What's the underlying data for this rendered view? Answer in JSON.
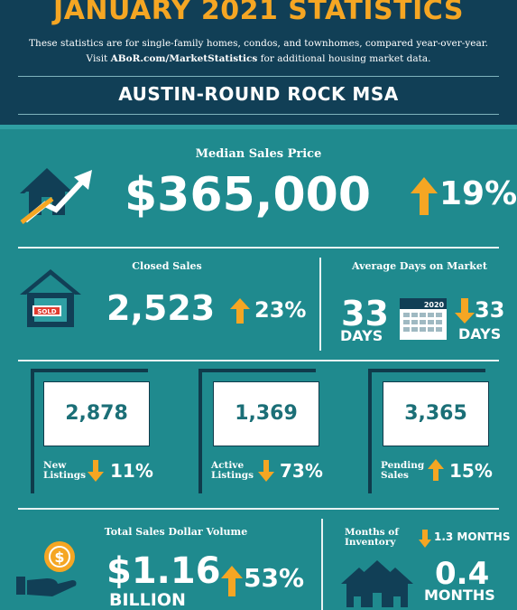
{
  "header": {
    "title": "JANUARY 2021 STATISTICS",
    "intro_line1": "These statistics are for single-family homes, condos, and townhomes, compared year-over-year.",
    "intro_visit": "Visit",
    "intro_link": "ABoR.com/MarketStatistics",
    "intro_tail": "for additional housing market data.",
    "region": "AUSTIN-ROUND ROCK MSA"
  },
  "median": {
    "label": "Median Sales Price",
    "value": "$365,000",
    "change": "19%",
    "direction": "up"
  },
  "closed": {
    "label": "Closed Sales",
    "value": "2,523",
    "change": "23%",
    "direction": "up",
    "sign_text": "SOLD"
  },
  "days": {
    "label": "Average Days on Market",
    "value": "33",
    "value_unit": "DAYS",
    "calendar_year": "2020",
    "change": "33",
    "change_unit": "DAYS",
    "direction": "down"
  },
  "listings": [
    {
      "value": "2,878",
      "label1": "New",
      "label2": "Listings",
      "change": "11%",
      "direction": "down"
    },
    {
      "value": "1,369",
      "label1": "Active",
      "label2": "Listings",
      "change": "73%",
      "direction": "down"
    },
    {
      "value": "3,365",
      "label1": "Pending",
      "label2": "Sales",
      "change": "15%",
      "direction": "up"
    }
  ],
  "volume": {
    "label": "Total Sales Dollar Volume",
    "value": "$1.16",
    "unit": "BILLION",
    "change": "53%",
    "direction": "up"
  },
  "inventory": {
    "label1": "Months of",
    "label2": "Inventory",
    "change": "1.3 MONTHS",
    "direction": "down",
    "value": "0.4",
    "unit": "MONTHS"
  },
  "colors": {
    "accent_orange": "#f5a623",
    "teal": "#1f8a8e",
    "navy": "#113f56"
  }
}
